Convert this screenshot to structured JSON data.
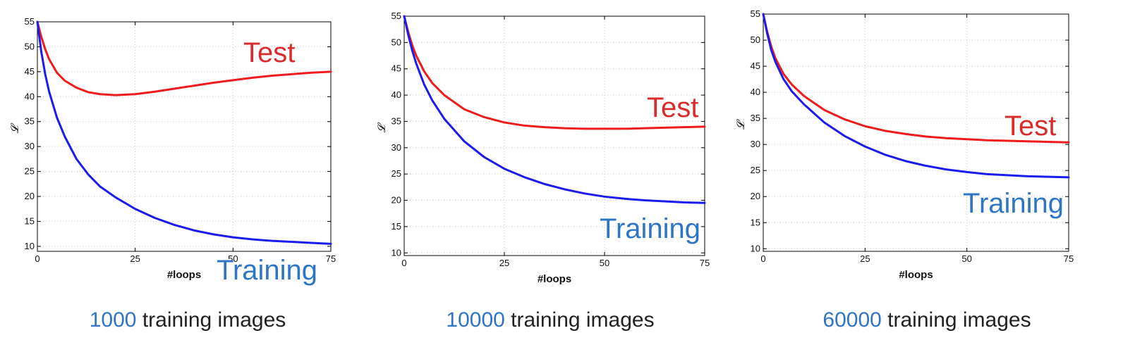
{
  "colors": {
    "test": "#ee1c1c",
    "training": "#1b1bee",
    "label_training": "#2e75c6",
    "label_test": "#d92b2b",
    "grid": "#c8c8c8"
  },
  "chart_data": [
    {
      "type": "line",
      "caption_number": "1000",
      "caption_text": " training images",
      "xlabel": "#loops",
      "ylabel": "𝓛",
      "xlim": [
        0,
        75
      ],
      "ylim": [
        9,
        55
      ],
      "xticks": [
        0,
        25,
        50,
        75
      ],
      "yticks": [
        10,
        15,
        20,
        25,
        30,
        35,
        40,
        45,
        50,
        55
      ],
      "grid": true,
      "series": [
        {
          "name": "Test",
          "x": [
            0,
            1,
            2,
            3,
            5,
            7,
            10,
            13,
            16,
            20,
            25,
            30,
            35,
            40,
            45,
            50,
            55,
            60,
            65,
            70,
            75
          ],
          "y": [
            55,
            52,
            49.5,
            47.5,
            44.8,
            43.2,
            41.8,
            40.9,
            40.5,
            40.3,
            40.5,
            41,
            41.6,
            42.2,
            42.8,
            43.3,
            43.8,
            44.2,
            44.5,
            44.8,
            45
          ]
        },
        {
          "name": "Training",
          "x": [
            0,
            1,
            2,
            3,
            5,
            7,
            10,
            13,
            16,
            20,
            25,
            30,
            35,
            40,
            45,
            50,
            55,
            60,
            65,
            70,
            75
          ],
          "y": [
            55,
            49,
            44.5,
            41,
            35.8,
            32,
            27.5,
            24.4,
            22,
            19.8,
            17.5,
            15.7,
            14.3,
            13.2,
            12.4,
            11.8,
            11.4,
            11.1,
            10.9,
            10.7,
            10.5
          ]
        }
      ]
    },
    {
      "type": "line",
      "caption_number": "10000",
      "caption_text": " training images",
      "xlabel": "#loops",
      "ylabel": "𝓛",
      "xlim": [
        0,
        75
      ],
      "ylim": [
        9.5,
        55
      ],
      "xticks": [
        0,
        25,
        50,
        75
      ],
      "yticks": [
        10,
        15,
        20,
        25,
        30,
        35,
        40,
        45,
        50,
        55
      ],
      "grid": true,
      "series": [
        {
          "name": "Test",
          "x": [
            0,
            1,
            2,
            3,
            5,
            7,
            10,
            15,
            20,
            25,
            30,
            35,
            40,
            45,
            50,
            55,
            60,
            65,
            70,
            75
          ],
          "y": [
            55,
            52,
            49.5,
            47.5,
            44.5,
            42.3,
            40,
            37.3,
            35.8,
            34.8,
            34.2,
            33.9,
            33.7,
            33.6,
            33.6,
            33.6,
            33.7,
            33.8,
            33.9,
            34
          ]
        },
        {
          "name": "Training",
          "x": [
            0,
            1,
            2,
            3,
            5,
            7,
            10,
            15,
            20,
            25,
            30,
            35,
            40,
            45,
            50,
            55,
            60,
            65,
            70,
            75
          ],
          "y": [
            55,
            51.5,
            48.5,
            46,
            42,
            39,
            35.5,
            31.2,
            28.2,
            26,
            24.4,
            23.1,
            22.1,
            21.3,
            20.7,
            20.3,
            20,
            19.8,
            19.6,
            19.5
          ]
        }
      ]
    },
    {
      "type": "line",
      "caption_number": "60000",
      "caption_text": " training images",
      "xlabel": "#loops",
      "ylabel": "𝓛",
      "xlim": [
        0,
        75
      ],
      "ylim": [
        9.5,
        55
      ],
      "xticks": [
        0,
        25,
        50,
        75
      ],
      "yticks": [
        10,
        15,
        20,
        25,
        30,
        35,
        40,
        45,
        50,
        55
      ],
      "grid": true,
      "series": [
        {
          "name": "Test",
          "x": [
            0,
            1,
            2,
            3,
            5,
            7,
            10,
            15,
            20,
            25,
            30,
            35,
            40,
            45,
            50,
            55,
            60,
            65,
            70,
            75
          ],
          "y": [
            55,
            51.5,
            48.7,
            46.5,
            43.5,
            41.5,
            39.3,
            36.6,
            34.8,
            33.5,
            32.6,
            32,
            31.5,
            31.2,
            31,
            30.8,
            30.7,
            30.6,
            30.5,
            30.4
          ]
        },
        {
          "name": "Training",
          "x": [
            0,
            1,
            2,
            3,
            5,
            7,
            10,
            15,
            20,
            25,
            30,
            35,
            40,
            45,
            50,
            55,
            60,
            65,
            70,
            75
          ],
          "y": [
            55,
            51.2,
            48,
            45.8,
            42.5,
            40.2,
            37.7,
            34.2,
            31.6,
            29.6,
            28,
            26.8,
            25.9,
            25.2,
            24.7,
            24.3,
            24.1,
            23.9,
            23.8,
            23.7
          ]
        }
      ]
    }
  ]
}
